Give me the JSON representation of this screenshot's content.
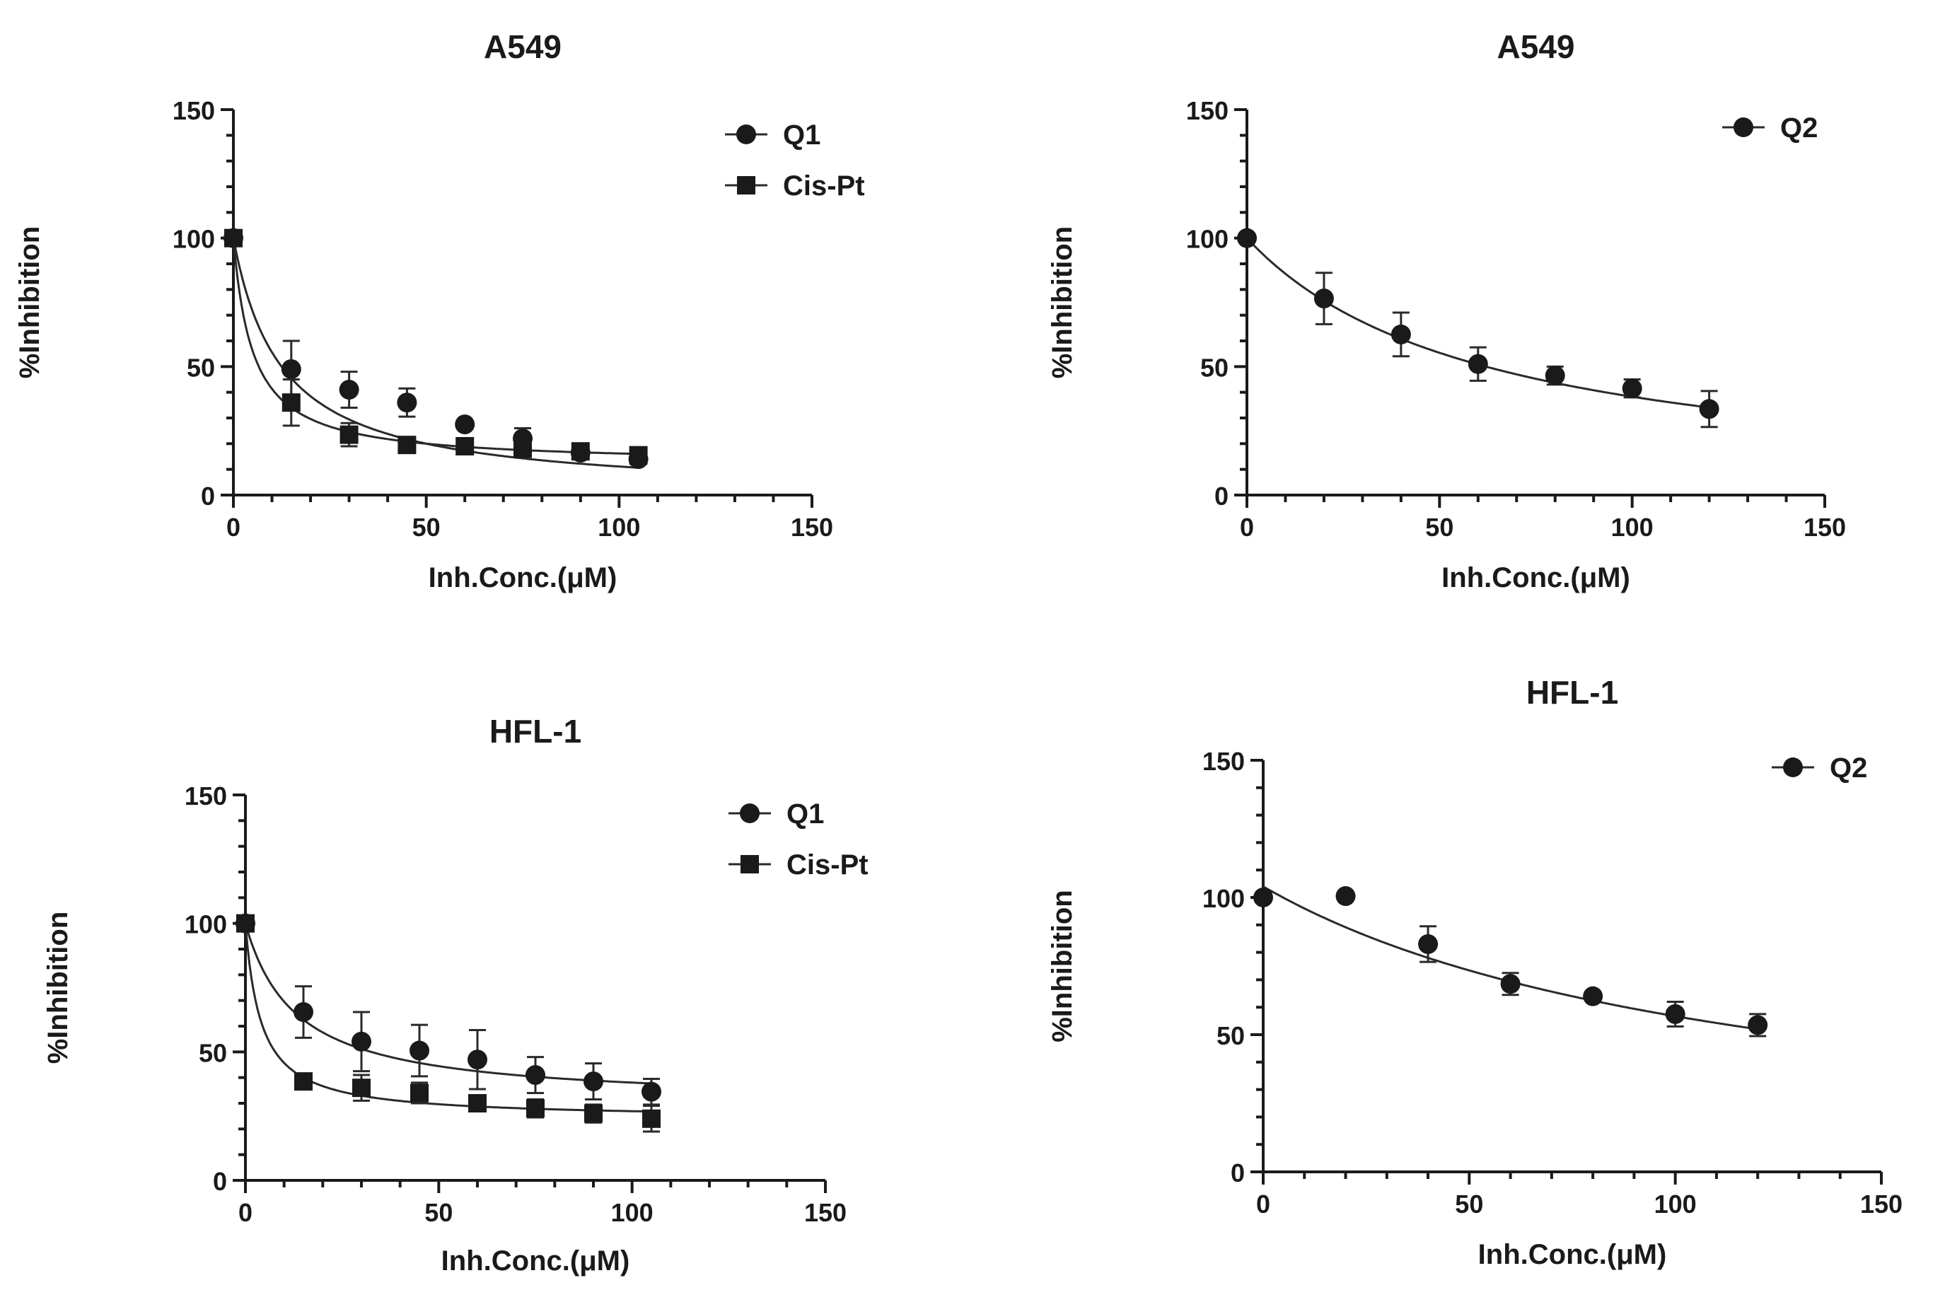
{
  "chart_data": [
    {
      "type": "scatter",
      "title": "A549",
      "xlabel": "Inh.Conc.(μM)",
      "ylabel": "%Inhibition",
      "xlim": [
        0,
        150
      ],
      "ylim": [
        0,
        150
      ],
      "xticks": [
        0,
        50,
        100,
        150
      ],
      "yticks": [
        0,
        50,
        100,
        150
      ],
      "legend_position": "top-right",
      "series": [
        {
          "name": "Q1",
          "marker": "circle",
          "x": [
            0,
            15,
            30,
            45,
            60,
            75,
            90,
            105
          ],
          "y": [
            100,
            49,
            41,
            36,
            27.5,
            22,
            16.5,
            14
          ],
          "err": [
            0,
            11,
            7,
            5.5,
            0,
            4,
            2,
            2
          ],
          "fit": {
            "top": 100,
            "ic50": 12.5,
            "bottom": 0
          }
        },
        {
          "name": "Cis-Pt",
          "marker": "square",
          "x": [
            0,
            15,
            30,
            45,
            60,
            75,
            90,
            105
          ],
          "y": [
            100,
            36,
            23.5,
            19.5,
            19,
            18,
            17,
            15.5
          ],
          "err": [
            0,
            9,
            4.5,
            1.5,
            1.5,
            1.5,
            1.5,
            1.5
          ],
          "fit": {
            "top": 100,
            "ic50": 5,
            "bottom": 12
          }
        }
      ]
    },
    {
      "type": "scatter",
      "title": "A549",
      "xlabel": "Inh.Conc.(μM)",
      "ylabel": "%Inhibition",
      "xlim": [
        0,
        150
      ],
      "ylim": [
        0,
        150
      ],
      "xticks": [
        0,
        50,
        100,
        150
      ],
      "yticks": [
        0,
        50,
        100,
        150
      ],
      "legend_position": "top-right",
      "series": [
        {
          "name": "Q2",
          "marker": "circle",
          "x": [
            0,
            20,
            40,
            60,
            80,
            100,
            120
          ],
          "y": [
            100,
            76.5,
            62.5,
            51,
            46.5,
            41.5,
            33.5
          ],
          "err": [
            0,
            10,
            8.5,
            6.5,
            3.5,
            3.5,
            7
          ],
          "fit": {
            "top": 100,
            "ic50": 62,
            "bottom": 0
          }
        }
      ]
    },
    {
      "type": "scatter",
      "title": "HFL-1",
      "xlabel": "Inh.Conc.(μM)",
      "ylabel": "%Inhibition",
      "xlim": [
        0,
        150
      ],
      "ylim": [
        0,
        150
      ],
      "xticks": [
        0,
        50,
        100,
        150
      ],
      "yticks": [
        0,
        50,
        100,
        150
      ],
      "legend_position": "top-right",
      "series": [
        {
          "name": "Q1",
          "marker": "circle",
          "x": [
            0,
            15,
            30,
            45,
            60,
            75,
            90,
            105
          ],
          "y": [
            100,
            65.5,
            54,
            50.5,
            47,
            41,
            38.5,
            34.5
          ],
          "err": [
            0,
            10,
            11.5,
            10,
            11.5,
            7,
            7,
            5
          ],
          "fit": {
            "top": 100,
            "ic50": 13,
            "bottom": 30
          }
        },
        {
          "name": "Cis-Pt",
          "marker": "square",
          "x": [
            0,
            15,
            30,
            45,
            60,
            75,
            90,
            105
          ],
          "y": [
            100,
            38.5,
            36,
            34,
            30,
            28,
            26,
            24
          ],
          "err": [
            0,
            3,
            5,
            4,
            1.5,
            3.5,
            3.5,
            5
          ],
          "fit": {
            "top": 100,
            "ic50": 4,
            "bottom": 24
          }
        }
      ]
    },
    {
      "type": "scatter",
      "title": "HFL-1",
      "xlabel": "Inh.Conc.(μM)",
      "ylabel": "%Inhibition",
      "xlim": [
        0,
        150
      ],
      "ylim": [
        0,
        150
      ],
      "xticks": [
        0,
        50,
        100,
        150
      ],
      "yticks": [
        0,
        50,
        100,
        150
      ],
      "legend_position": "top-right",
      "series": [
        {
          "name": "Q2",
          "marker": "circle",
          "x": [
            0,
            20,
            40,
            60,
            80,
            100,
            120
          ],
          "y": [
            100,
            100.5,
            83,
            68.5,
            64,
            57.5,
            53.5
          ],
          "err": [
            0,
            0,
            6.5,
            4,
            0,
            4.5,
            4
          ],
          "fit": {
            "top": 104,
            "ic50": 120,
            "bottom": 0
          }
        }
      ]
    }
  ]
}
